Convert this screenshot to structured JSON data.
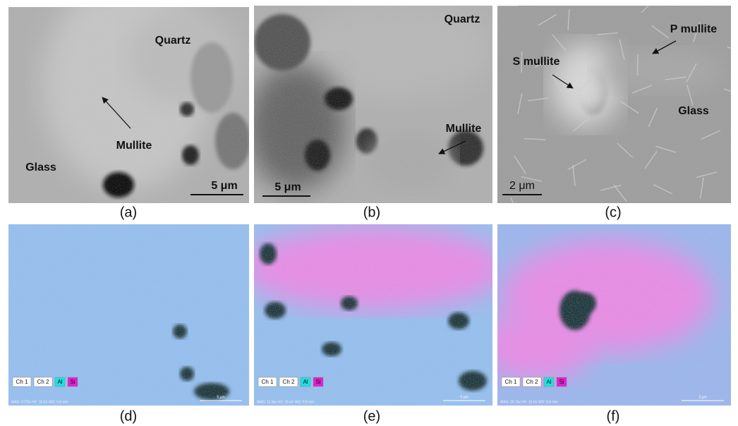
{
  "panels": [
    {
      "caption": "(a)",
      "labels": [
        "Quartz",
        "Mullite",
        "Glass"
      ],
      "scale_bar": "5 μm"
    },
    {
      "caption": "(b)",
      "labels": [
        "Quartz",
        "Mullite"
      ],
      "scale_bar": "5 μm"
    },
    {
      "caption": "(c)",
      "labels": [
        "P mullite",
        "S mullite",
        "Glass"
      ],
      "scale_bar": "2 μm"
    },
    {
      "caption": "(d)",
      "legend": [
        "Ch 1",
        "Ch 2",
        "Al",
        "Si"
      ],
      "scale_bar": "5 µm",
      "info": "MAG: 6770x   HV: 15 kV   WD: 9.8 mm"
    },
    {
      "caption": "(e)",
      "legend": [
        "Ch 1",
        "Ch 2",
        "Al",
        "Si"
      ],
      "scale_bar": "5 µm",
      "info": "MAG: 11.9kx   HV: 15 kV   WD: 9.8 mm"
    },
    {
      "caption": "(f)",
      "legend": [
        "Ch 1",
        "Ch 2",
        "Al",
        "Si"
      ],
      "scale_bar": "2 µm",
      "info": "MAG: 26.7kx   HV: 15 kV   WD: 9.6 mm"
    }
  ]
}
